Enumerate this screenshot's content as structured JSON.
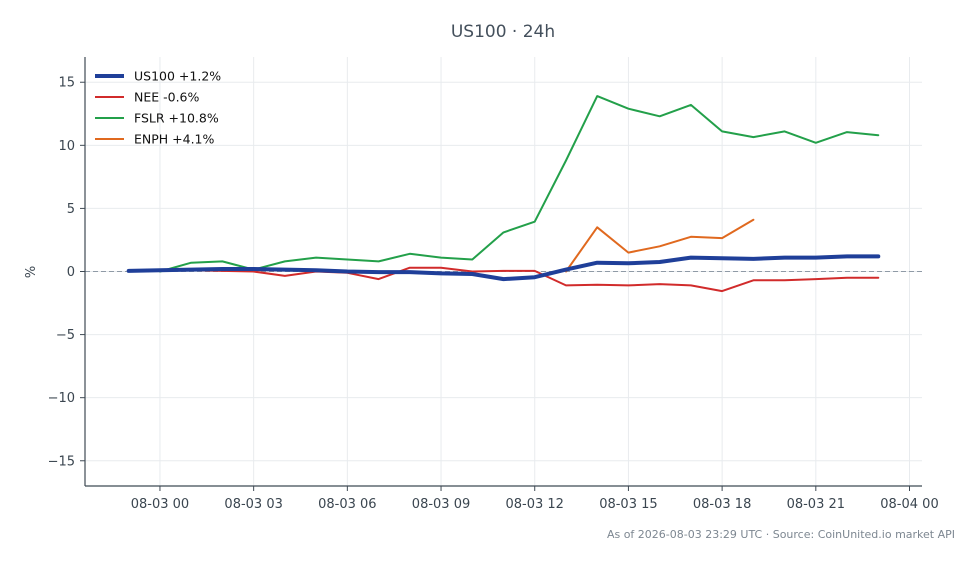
{
  "chart_data": {
    "type": "line",
    "title": "US100 · 24h",
    "xlabel": "",
    "ylabel": "%",
    "ylim": [
      -17,
      17
    ],
    "xlim": [
      "2026-08-02 21:36",
      "2026-08-04 00:24"
    ],
    "yticks": [
      -15,
      -10,
      -5,
      0,
      5,
      10,
      15
    ],
    "ytick_labels": [
      "−15",
      "−10",
      "−5",
      "0",
      "5",
      "10",
      "15"
    ],
    "xticks": [
      "2026-08-03 00:00",
      "2026-08-03 03:00",
      "2026-08-03 06:00",
      "2026-08-03 09:00",
      "2026-08-03 12:00",
      "2026-08-03 15:00",
      "2026-08-03 18:00",
      "2026-08-03 21:00",
      "2026-08-04 00:00"
    ],
    "xtick_labels": [
      "08-03 00",
      "08-03 03",
      "08-03 06",
      "08-03 09",
      "08-03 12",
      "08-03 15",
      "08-03 18",
      "08-03 21",
      "08-04 00"
    ],
    "grid": true,
    "legend_position": "top-left",
    "baseline": 0,
    "footer": "As of 2026-08-03 23:29 UTC · Source: CoinUnited.io market API",
    "series": [
      {
        "name": "US100 +1.2%",
        "color": "#1f3f99",
        "emphasis": "thick",
        "x": [
          "2026-08-02 23:00",
          "2026-08-03 00:00",
          "2026-08-03 01:00",
          "2026-08-03 02:00",
          "2026-08-03 03:00",
          "2026-08-03 04:00",
          "2026-08-03 05:00",
          "2026-08-03 06:00",
          "2026-08-03 07:00",
          "2026-08-03 08:00",
          "2026-08-03 09:00",
          "2026-08-03 10:00",
          "2026-08-03 11:00",
          "2026-08-03 12:00",
          "2026-08-03 13:00",
          "2026-08-03 14:00",
          "2026-08-03 15:00",
          "2026-08-03 16:00",
          "2026-08-03 17:00",
          "2026-08-03 18:00",
          "2026-08-03 19:00",
          "2026-08-03 20:00",
          "2026-08-03 21:00",
          "2026-08-03 22:00",
          "2026-08-03 23:00"
        ],
        "values": [
          0.05,
          0.1,
          0.15,
          0.2,
          0.2,
          0.15,
          0.1,
          0.0,
          -0.05,
          -0.05,
          -0.15,
          -0.2,
          -0.6,
          -0.45,
          0.15,
          0.7,
          0.65,
          0.75,
          1.1,
          1.05,
          1.0,
          1.1,
          1.1,
          1.2,
          1.2
        ]
      },
      {
        "name": "NEE -0.6%",
        "color": "#d12b2b",
        "emphasis": "normal",
        "x": [
          "2026-08-03 00:00",
          "2026-08-03 01:00",
          "2026-08-03 02:00",
          "2026-08-03 03:00",
          "2026-08-03 04:00",
          "2026-08-03 05:00",
          "2026-08-03 06:00",
          "2026-08-03 07:00",
          "2026-08-03 08:00",
          "2026-08-03 09:00",
          "2026-08-03 10:00",
          "2026-08-03 11:00",
          "2026-08-03 12:00",
          "2026-08-03 13:00",
          "2026-08-03 14:00",
          "2026-08-03 15:00",
          "2026-08-03 16:00",
          "2026-08-03 17:00",
          "2026-08-03 18:00",
          "2026-08-03 19:00",
          "2026-08-03 20:00",
          "2026-08-03 21:00",
          "2026-08-03 22:00",
          "2026-08-03 23:00"
        ],
        "values": [
          0.1,
          0.1,
          0.05,
          0.0,
          -0.35,
          0.0,
          -0.1,
          -0.6,
          0.3,
          0.3,
          0.0,
          0.05,
          0.05,
          -1.1,
          -1.05,
          -1.1,
          -1.0,
          -1.1,
          -1.55,
          -0.7,
          -0.7,
          -0.6,
          -0.5,
          -0.5
        ]
      },
      {
        "name": "FSLR +10.8%",
        "color": "#23a04a",
        "emphasis": "normal",
        "x": [
          "2026-08-03 00:00",
          "2026-08-03 01:00",
          "2026-08-03 02:00",
          "2026-08-03 03:00",
          "2026-08-03 04:00",
          "2026-08-03 05:00",
          "2026-08-03 06:00",
          "2026-08-03 07:00",
          "2026-08-03 08:00",
          "2026-08-03 09:00",
          "2026-08-03 10:00",
          "2026-08-03 11:00",
          "2026-08-03 12:00",
          "2026-08-03 13:00",
          "2026-08-03 14:00",
          "2026-08-03 15:00",
          "2026-08-03 16:00",
          "2026-08-03 17:00",
          "2026-08-03 18:00",
          "2026-08-03 19:00",
          "2026-08-03 20:00",
          "2026-08-03 21:00",
          "2026-08-03 22:00",
          "2026-08-03 23:00"
        ],
        "values": [
          0.0,
          0.7,
          0.8,
          0.15,
          0.8,
          1.1,
          0.95,
          0.8,
          1.4,
          1.1,
          0.95,
          3.1,
          3.95,
          8.8,
          13.9,
          12.9,
          12.3,
          13.2,
          11.1,
          10.65,
          11.1,
          10.2,
          11.05,
          10.8
        ]
      },
      {
        "name": "ENPH +4.1%",
        "color": "#e0691f",
        "emphasis": "normal",
        "x": [
          "2026-08-03 13:00",
          "2026-08-03 14:00",
          "2026-08-03 15:00",
          "2026-08-03 16:00",
          "2026-08-03 17:00",
          "2026-08-03 18:00",
          "2026-08-03 19:00"
        ],
        "values": [
          0.0,
          3.5,
          1.5,
          2.0,
          2.75,
          2.65,
          4.1
        ]
      }
    ]
  }
}
